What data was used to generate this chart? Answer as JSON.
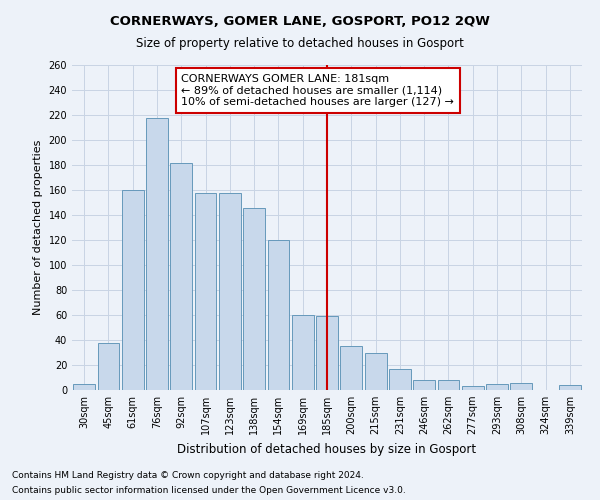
{
  "title": "CORNERWAYS, GOMER LANE, GOSPORT, PO12 2QW",
  "subtitle": "Size of property relative to detached houses in Gosport",
  "xlabel": "Distribution of detached houses by size in Gosport",
  "ylabel": "Number of detached properties",
  "categories": [
    "30sqm",
    "45sqm",
    "61sqm",
    "76sqm",
    "92sqm",
    "107sqm",
    "123sqm",
    "138sqm",
    "154sqm",
    "169sqm",
    "185sqm",
    "200sqm",
    "215sqm",
    "231sqm",
    "246sqm",
    "262sqm",
    "277sqm",
    "293sqm",
    "308sqm",
    "324sqm",
    "339sqm"
  ],
  "values": [
    5,
    38,
    160,
    218,
    182,
    158,
    158,
    146,
    120,
    60,
    59,
    35,
    30,
    17,
    8,
    8,
    3,
    5,
    6,
    0,
    4
  ],
  "bar_color": "#c8d8eb",
  "bar_edge_color": "#6699bb",
  "vline_x_index": 10,
  "vline_color": "#cc0000",
  "annotation_text": "CORNERWAYS GOMER LANE: 181sqm\n← 89% of detached houses are smaller (1,114)\n10% of semi-detached houses are larger (127) →",
  "annotation_box_color": "#ffffff",
  "annotation_box_edge_color": "#cc0000",
  "ylim": [
    0,
    260
  ],
  "yticks": [
    0,
    20,
    40,
    60,
    80,
    100,
    120,
    140,
    160,
    180,
    200,
    220,
    240,
    260
  ],
  "grid_color": "#c8d4e4",
  "background_color": "#edf2f9",
  "footnote1": "Contains HM Land Registry data © Crown copyright and database right 2024.",
  "footnote2": "Contains public sector information licensed under the Open Government Licence v3.0.",
  "title_fontsize": 9.5,
  "subtitle_fontsize": 8.5,
  "xlabel_fontsize": 8.5,
  "ylabel_fontsize": 8,
  "tick_fontsize": 7,
  "annotation_fontsize": 8,
  "footnote_fontsize": 6.5
}
